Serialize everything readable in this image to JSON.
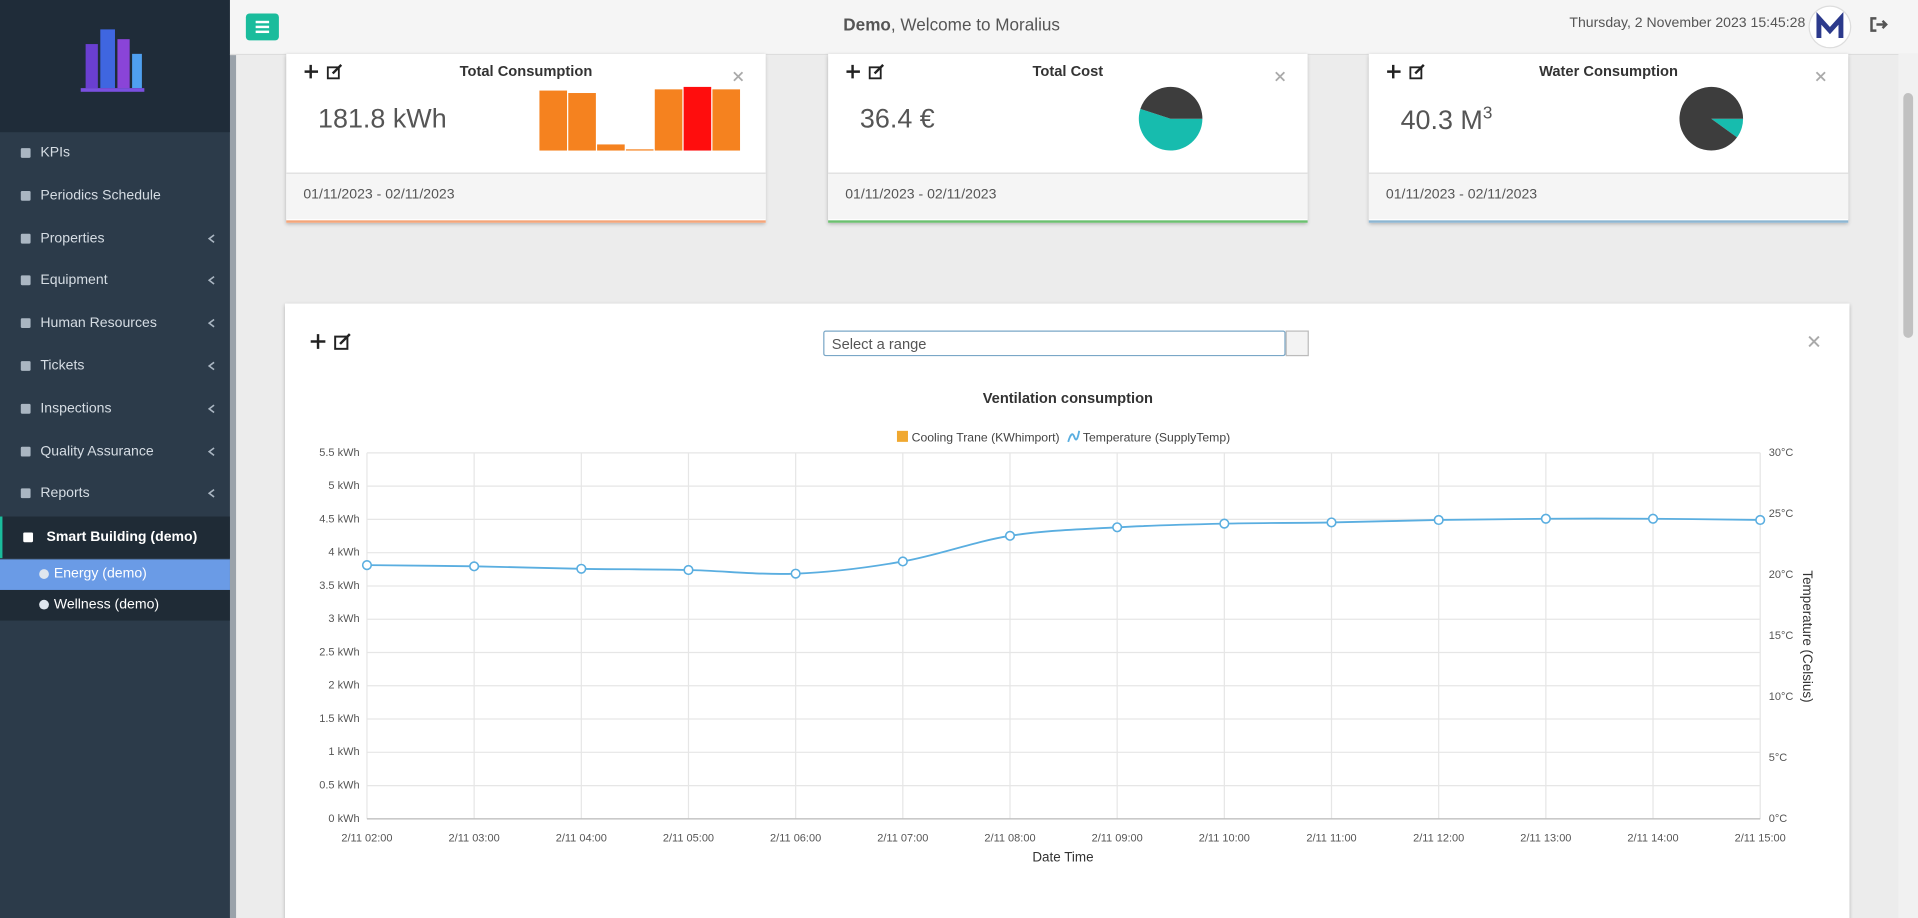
{
  "header": {
    "brand": "Demo",
    "welcome": ", Welcome to Moralius",
    "datetime": "Thursday, 2 November 2023 15:45:28"
  },
  "sidebar": {
    "items": [
      {
        "label": "KPIs",
        "expandable": false
      },
      {
        "label": "Periodics Schedule",
        "expandable": false
      },
      {
        "label": "Properties",
        "expandable": true
      },
      {
        "label": "Equipment",
        "expandable": true
      },
      {
        "label": "Human Resources",
        "expandable": true
      },
      {
        "label": "Tickets",
        "expandable": true
      },
      {
        "label": "Inspections",
        "expandable": true
      },
      {
        "label": "Quality Assurance",
        "expandable": true
      },
      {
        "label": "Reports",
        "expandable": true
      }
    ],
    "active_group": "Smart Building (demo)",
    "sub_items": [
      "Energy (demo)",
      "Wellness (demo)"
    ]
  },
  "cards": [
    {
      "title": "Total Consumption",
      "value": "181.8 kWh",
      "date_range": "01/11/2023 - 02/11/2023",
      "border": "#f4a57a",
      "chart": {
        "type": "bar",
        "values": [
          49,
          47,
          5,
          1,
          50,
          52,
          50
        ],
        "colors": [
          "#f5821f",
          "#f5821f",
          "#f5821f",
          "#f5821f",
          "#f5821f",
          "#ff0d0d",
          "#f5821f"
        ]
      }
    },
    {
      "title": "Total Cost",
      "value": "36.4 €",
      "date_range": "01/11/2023 - 02/11/2023",
      "border": "#6cc070",
      "chart": {
        "type": "pie",
        "values": [
          55,
          45
        ],
        "colors": [
          "#17bcae",
          "#3d3d3d"
        ]
      }
    },
    {
      "title": "Water Consumption",
      "value": "40.3 M",
      "value_sup": "3",
      "date_range": "01/11/2023 - 02/11/2023",
      "border": "#8db6d2",
      "chart": {
        "type": "pie",
        "values": [
          10,
          90
        ],
        "colors": [
          "#17bcae",
          "#3d3d3d"
        ]
      }
    }
  ],
  "widget": {
    "range_placeholder": "Select a range"
  },
  "chart_data": {
    "type": "combo",
    "title": "Ventilation consumption",
    "x_label": "Date Time",
    "y2_label": "Temperature (Celsius)",
    "categories": [
      "2/11 02:00",
      "2/11 03:00",
      "2/11 04:00",
      "2/11 05:00",
      "2/11 06:00",
      "2/11 07:00",
      "2/11 08:00",
      "2/11 09:00",
      "2/11 10:00",
      "2/11 11:00",
      "2/11 12:00",
      "2/11 13:00",
      "2/11 14:00",
      "2/11 15:00"
    ],
    "series": [
      {
        "name": "Cooling Trane (KWhimport)",
        "type": "bar",
        "color": "#f0a830",
        "values": [
          0,
          0,
          0,
          0,
          0,
          0,
          0,
          0,
          0,
          0,
          0,
          0,
          0,
          0
        ]
      },
      {
        "name": "Temperature (SupplyTemp)",
        "type": "line",
        "axis": "y2",
        "color": "#5aaee0",
        "values": [
          20.8,
          20.7,
          20.5,
          20.4,
          20.1,
          21.1,
          23.2,
          23.9,
          24.2,
          24.3,
          24.5,
          24.6,
          24.6,
          24.5
        ]
      }
    ],
    "ylim": [
      0,
      5.5
    ],
    "yticks": [
      {
        "value": 0,
        "label": "0 kWh"
      },
      {
        "value": 0.5,
        "label": "0.5 kWh"
      },
      {
        "value": 1,
        "label": "1 kWh"
      },
      {
        "value": 1.5,
        "label": "1.5 kWh"
      },
      {
        "value": 2,
        "label": "2 kWh"
      },
      {
        "value": 2.5,
        "label": "2.5 kWh"
      },
      {
        "value": 3,
        "label": "3 kWh"
      },
      {
        "value": 3.5,
        "label": "3.5 kWh"
      },
      {
        "value": 4,
        "label": "4 kWh"
      },
      {
        "value": 4.5,
        "label": "4.5 kWh"
      },
      {
        "value": 5,
        "label": "5 kWh"
      },
      {
        "value": 5.5,
        "label": "5.5 kWh"
      }
    ],
    "y2lim": [
      0,
      30
    ],
    "y2ticks": [
      {
        "value": 0,
        "label": "0°C"
      },
      {
        "value": 5,
        "label": "5°C"
      },
      {
        "value": 10,
        "label": "10°C"
      },
      {
        "value": 15,
        "label": "15°C"
      },
      {
        "value": 20,
        "label": "20°C"
      },
      {
        "value": 25,
        "label": "25°C"
      },
      {
        "value": 30,
        "label": "30°C"
      }
    ],
    "grid": true
  }
}
